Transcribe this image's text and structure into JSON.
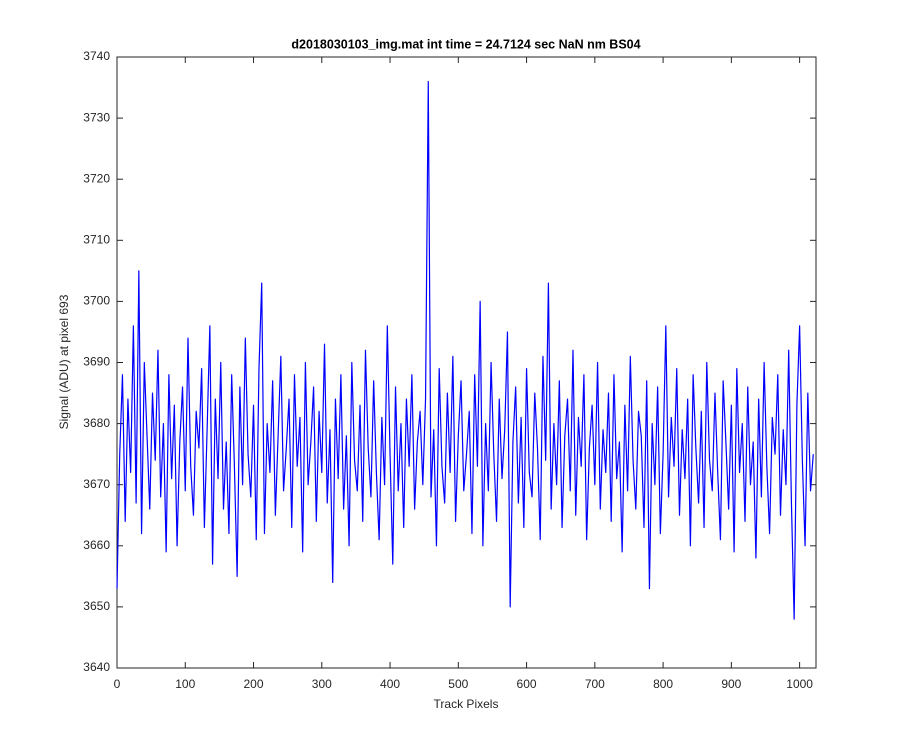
{
  "chart_data": {
    "type": "line",
    "title": "d2018030103_img.mat int time = 24.7124 sec  NaN nm BS04",
    "x_label": "Track Pixels",
    "y_label": "Signal (ADU) at pixel 693",
    "xlim": [
      0,
      1024
    ],
    "ylim": [
      3640,
      3740
    ],
    "xticks": [
      0,
      100,
      200,
      300,
      400,
      500,
      600,
      700,
      800,
      900,
      1000
    ],
    "yticks": [
      3640,
      3650,
      3660,
      3670,
      3680,
      3690,
      3700,
      3710,
      3720,
      3730,
      3740
    ],
    "grid": false,
    "x": [
      0,
      4,
      8,
      12,
      16,
      20,
      24,
      28,
      32,
      36,
      40,
      44,
      48,
      52,
      56,
      60,
      64,
      68,
      72,
      76,
      80,
      84,
      88,
      92,
      96,
      100,
      104,
      108,
      112,
      116,
      120,
      124,
      128,
      132,
      136,
      140,
      144,
      148,
      152,
      156,
      160,
      164,
      168,
      172,
      176,
      180,
      184,
      188,
      192,
      196,
      200,
      204,
      208,
      212,
      216,
      220,
      224,
      228,
      232,
      236,
      240,
      244,
      248,
      252,
      256,
      260,
      264,
      268,
      272,
      276,
      280,
      284,
      288,
      292,
      296,
      300,
      304,
      308,
      312,
      316,
      320,
      324,
      328,
      332,
      336,
      340,
      344,
      348,
      352,
      356,
      360,
      364,
      368,
      372,
      376,
      380,
      384,
      388,
      392,
      396,
      400,
      404,
      408,
      412,
      416,
      420,
      424,
      428,
      432,
      436,
      440,
      444,
      448,
      452,
      456,
      460,
      464,
      468,
      472,
      476,
      480,
      484,
      488,
      492,
      496,
      500,
      504,
      508,
      512,
      516,
      520,
      524,
      528,
      532,
      536,
      540,
      544,
      548,
      552,
      556,
      560,
      564,
      568,
      572,
      576,
      580,
      584,
      588,
      592,
      596,
      600,
      604,
      608,
      612,
      616,
      620,
      624,
      628,
      632,
      636,
      640,
      644,
      648,
      652,
      656,
      660,
      664,
      668,
      672,
      676,
      680,
      684,
      688,
      692,
      696,
      700,
      704,
      708,
      712,
      716,
      720,
      724,
      728,
      732,
      736,
      740,
      744,
      748,
      752,
      756,
      760,
      764,
      768,
      772,
      776,
      780,
      784,
      788,
      792,
      796,
      800,
      804,
      808,
      812,
      816,
      820,
      824,
      828,
      832,
      836,
      840,
      844,
      848,
      852,
      856,
      860,
      864,
      868,
      872,
      876,
      880,
      884,
      888,
      892,
      896,
      900,
      904,
      908,
      912,
      916,
      920,
      924,
      928,
      932,
      936,
      940,
      944,
      948,
      952,
      956,
      960,
      964,
      968,
      972,
      976,
      980,
      984,
      988,
      992,
      996,
      1000,
      1004,
      1008,
      1012,
      1016,
      1020
    ],
    "series": [
      {
        "name": "signal",
        "color": "#0000ff",
        "values": [
          3653,
          3675,
          3688,
          3664,
          3684,
          3672,
          3696,
          3667,
          3705,
          3662,
          3690,
          3678,
          3666,
          3685,
          3674,
          3692,
          3668,
          3680,
          3659,
          3688,
          3671,
          3683,
          3660,
          3677,
          3686,
          3669,
          3694,
          3673,
          3665,
          3682,
          3676,
          3689,
          3663,
          3679,
          3696,
          3657,
          3684,
          3671,
          3690,
          3666,
          3677,
          3662,
          3688,
          3673,
          3655,
          3686,
          3670,
          3694,
          3675,
          3668,
          3683,
          3661,
          3689,
          3703,
          3662,
          3680,
          3672,
          3687,
          3665,
          3678,
          3691,
          3669,
          3676,
          3684,
          3663,
          3688,
          3673,
          3681,
          3659,
          3690,
          3670,
          3677,
          3686,
          3664,
          3682,
          3672,
          3693,
          3667,
          3679,
          3654,
          3684,
          3671,
          3688,
          3666,
          3678,
          3660,
          3690,
          3674,
          3669,
          3683,
          3664,
          3692,
          3676,
          3668,
          3687,
          3672,
          3661,
          3681,
          3670,
          3696,
          3675,
          3657,
          3686,
          3669,
          3680,
          3663,
          3684,
          3673,
          3688,
          3666,
          3677,
          3682,
          3670,
          3684,
          3736,
          3668,
          3679,
          3660,
          3689,
          3673,
          3667,
          3685,
          3672,
          3691,
          3664,
          3678,
          3687,
          3669,
          3675,
          3682,
          3662,
          3688,
          3673,
          3700,
          3660,
          3680,
          3669,
          3690,
          3675,
          3664,
          3684,
          3671,
          3679,
          3695,
          3650,
          3677,
          3686,
          3667,
          3681,
          3663,
          3689,
          3672,
          3668,
          3685,
          3676,
          3661,
          3691,
          3674,
          3703,
          3666,
          3680,
          3670,
          3687,
          3663,
          3678,
          3684,
          3669,
          3692,
          3665,
          3681,
          3673,
          3688,
          3661,
          3676,
          3683,
          3670,
          3690,
          3666,
          3679,
          3672,
          3685,
          3664,
          3688,
          3671,
          3677,
          3659,
          3683,
          3669,
          3691,
          3674,
          3666,
          3682,
          3678,
          3663,
          3687,
          3653,
          3680,
          3670,
          3686,
          3662,
          3675,
          3696,
          3668,
          3681,
          3673,
          3689,
          3665,
          3679,
          3671,
          3684,
          3660,
          3688,
          3676,
          3667,
          3682,
          3663,
          3690,
          3674,
          3669,
          3685,
          3672,
          3661,
          3687,
          3677,
          3666,
          3683,
          3659,
          3689,
          3672,
          3680,
          3664,
          3686,
          3670,
          3677,
          3658,
          3684,
          3668,
          3690,
          3673,
          3662,
          3681,
          3675,
          3688,
          3665,
          3679,
          3670,
          3692,
          3667,
          3648,
          3683,
          3696,
          3674,
          3660,
          3685,
          3669,
          3675
        ]
      }
    ]
  }
}
